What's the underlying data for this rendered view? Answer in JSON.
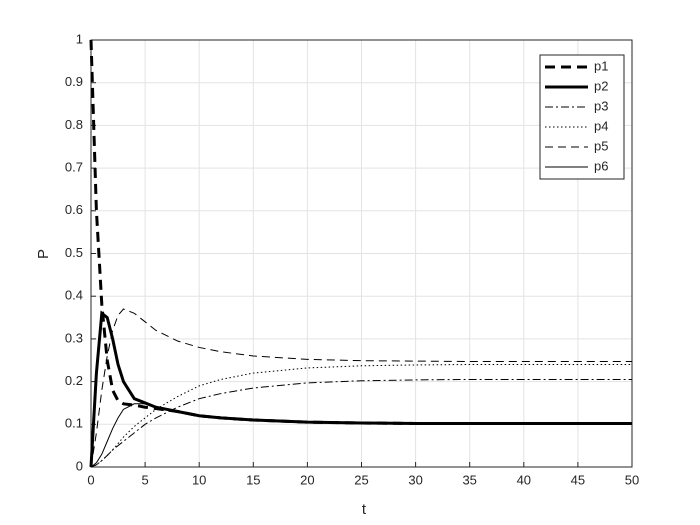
{
  "chart_data": {
    "type": "line",
    "xlabel": "t",
    "ylabel": "P",
    "x": [
      0,
      0.5,
      1,
      1.5,
      2,
      2.5,
      3,
      4,
      5,
      6,
      8,
      10,
      12,
      15,
      20,
      25,
      30,
      35,
      40,
      45,
      50
    ],
    "series": [
      {
        "name": "p1",
        "color": "#000000",
        "linestyle": "dashed",
        "width": 3,
        "values": [
          1,
          0.6,
          0.38,
          0.25,
          0.18,
          0.155,
          0.148,
          0.145,
          0.14,
          0.137,
          0.13,
          0.12,
          0.115,
          0.11,
          0.105,
          0.103,
          0.102,
          0.102,
          0.102,
          0.102,
          0.102
        ]
      },
      {
        "name": "p2",
        "color": "#000000",
        "linestyle": "solid",
        "width": 3,
        "values": [
          0,
          0.22,
          0.36,
          0.35,
          0.3,
          0.24,
          0.2,
          0.16,
          0.15,
          0.14,
          0.13,
          0.12,
          0.115,
          0.11,
          0.105,
          0.103,
          0.102,
          0.102,
          0.102,
          0.102,
          0.102
        ]
      },
      {
        "name": "p3",
        "color": "#000000",
        "linestyle": "dashdot",
        "width": 1,
        "values": [
          0,
          0.005,
          0.015,
          0.027,
          0.04,
          0.05,
          0.06,
          0.08,
          0.1,
          0.115,
          0.14,
          0.16,
          0.172,
          0.185,
          0.197,
          0.202,
          0.204,
          0.205,
          0.205,
          0.205,
          0.205
        ]
      },
      {
        "name": "p4",
        "color": "#000000",
        "linestyle": "dotted",
        "width": 1,
        "values": [
          0,
          0.005,
          0.015,
          0.027,
          0.04,
          0.055,
          0.07,
          0.095,
          0.115,
          0.135,
          0.165,
          0.19,
          0.205,
          0.22,
          0.232,
          0.237,
          0.239,
          0.24,
          0.24,
          0.24,
          0.24
        ]
      },
      {
        "name": "p5",
        "color": "#000000",
        "linestyle": "dashed",
        "width": 1,
        "values": [
          0,
          0.08,
          0.18,
          0.26,
          0.32,
          0.355,
          0.37,
          0.36,
          0.34,
          0.32,
          0.295,
          0.28,
          0.27,
          0.26,
          0.252,
          0.249,
          0.248,
          0.247,
          0.247,
          0.247,
          0.247
        ]
      },
      {
        "name": "p6",
        "color": "#000000",
        "linestyle": "solid",
        "width": 1,
        "values": [
          0,
          0.01,
          0.03,
          0.06,
          0.09,
          0.115,
          0.135,
          0.148,
          0.148,
          0.142,
          0.13,
          0.12,
          0.115,
          0.11,
          0.105,
          0.103,
          0.102,
          0.102,
          0.102,
          0.102,
          0.102
        ]
      }
    ],
    "xlim": [
      0,
      50
    ],
    "xticks": [
      0,
      5,
      10,
      15,
      20,
      25,
      30,
      35,
      40,
      45,
      50
    ],
    "ylim": [
      0,
      1
    ],
    "yticks": [
      0,
      0.1,
      0.2,
      0.3,
      0.4,
      0.5,
      0.6,
      0.7,
      0.8,
      0.9,
      1
    ],
    "grid": true,
    "legend": "upper right"
  }
}
